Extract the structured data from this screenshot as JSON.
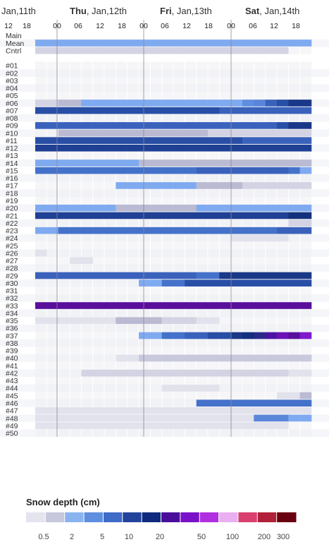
{
  "chart_data": {
    "type": "heatmap",
    "days": [
      {
        "prefix": "",
        "bold": "",
        "label": "Jan,11th",
        "faded": true
      },
      {
        "prefix": "",
        "bold": "Thu",
        "label": ", Jan,12th",
        "faded": false
      },
      {
        "prefix": "",
        "bold": "Fri",
        "label": ", Jan,13th",
        "faded": false
      },
      {
        "prefix": "",
        "bold": "Sat",
        "label": ", Jan,14th",
        "faded": false
      }
    ],
    "hour_ticks": [
      "12",
      "18",
      "00",
      "06",
      "12",
      "18",
      "00",
      "06",
      "12",
      "18",
      "00",
      "06",
      "12",
      "18"
    ],
    "rows": [
      "Main",
      "Mean",
      "Cntrl",
      "",
      "#01",
      "#02",
      "#03",
      "#04",
      "#05",
      "#06",
      "#07",
      "#08",
      "#09",
      "#10",
      "#11",
      "#12",
      "#13",
      "#14",
      "#15",
      "#16",
      "#17",
      "#18",
      "#19",
      "#20",
      "#21",
      "#22",
      "#23",
      "#24",
      "#25",
      "#26",
      "#27",
      "#28",
      "#29",
      "#30",
      "#31",
      "#32",
      "#33",
      "#34",
      "#35",
      "#36",
      "#37",
      "#38",
      "#39",
      "#40",
      "#41",
      "#42",
      "#43",
      "#44",
      "#45",
      "#46",
      "#47",
      "#48",
      "#49",
      "#50"
    ],
    "num_time_steps": 24,
    "cells": {
      "Mean": [
        1.5,
        1.5,
        1.5,
        1.5,
        1.5,
        1.5,
        1.5,
        1.5,
        1.5,
        1.5,
        1.5,
        1.5,
        1.5,
        1.5,
        1.5,
        1.5,
        1.5,
        1.5,
        1.5,
        1.5,
        1.5,
        1.5,
        1.5,
        1.5
      ],
      "Cntrl": [
        0.3,
        0.3,
        0.3,
        0.3,
        0.3,
        0.3,
        0.3,
        0.3,
        0.3,
        0.3,
        0.3,
        0.3,
        0.3,
        0.3,
        0.3,
        0.3,
        0.3,
        0.3,
        0.3,
        0.3,
        0.3,
        0.3,
        0,
        0
      ],
      "#06": [
        0.3,
        0.3,
        0.5,
        0.5,
        1.5,
        1.5,
        1.5,
        1.5,
        1.5,
        1.5,
        1.5,
        1.5,
        1.5,
        1.5,
        1.5,
        1.5,
        1.5,
        1.5,
        2.5,
        3,
        5,
        6,
        7,
        7
      ],
      "#07": [
        6,
        6,
        6,
        6,
        6,
        6,
        6,
        6,
        6,
        6,
        6,
        6,
        6,
        6,
        6,
        6,
        5,
        5,
        5,
        5,
        5,
        5,
        5,
        5
      ],
      "#09": [
        5,
        5,
        5,
        5,
        5,
        5,
        5,
        5,
        5,
        5,
        5,
        5,
        5,
        5,
        5,
        5,
        5,
        5,
        5,
        5,
        5,
        6,
        7,
        7
      ],
      "#10": [
        0,
        0,
        0.5,
        0.5,
        0.5,
        0.5,
        0.5,
        0.5,
        0.5,
        0.5,
        0.5,
        0.5,
        0.5,
        0.5,
        0.5,
        0.3,
        0.3,
        0.3,
        0.3,
        0.3,
        0.3,
        0.3,
        0.3,
        0.3
      ],
      "#11": [
        6,
        6,
        6,
        6,
        6,
        6,
        6,
        6,
        6,
        6,
        6,
        6,
        6,
        6,
        6,
        6,
        6,
        6,
        5,
        5,
        5,
        5,
        5,
        5
      ],
      "#12": [
        6.5,
        6.5,
        6.5,
        6.5,
        6.5,
        6.5,
        6.5,
        6.5,
        6.5,
        6.5,
        6.5,
        6.5,
        6.5,
        6.5,
        6.5,
        6.5,
        6.5,
        6.5,
        6.5,
        6.5,
        6.5,
        6.5,
        6.5,
        6.5
      ],
      "#14": [
        1.5,
        1.5,
        1.5,
        1.5,
        1.5,
        1.5,
        1.5,
        1.5,
        1.5,
        0.5,
        0.5,
        0.5,
        0.5,
        0.5,
        0.5,
        0.5,
        0.5,
        0.5,
        0.5,
        0.5,
        0.5,
        0.5,
        0.5,
        0.5
      ],
      "#15": [
        4,
        4,
        4,
        4,
        4,
        4,
        4,
        4,
        4,
        4,
        4,
        4,
        4,
        4,
        5,
        5,
        5,
        5,
        5,
        5,
        5,
        5,
        4,
        1.5
      ],
      "#17": [
        0,
        0,
        0,
        0,
        0,
        0,
        0,
        1.5,
        1.5,
        1.5,
        1.5,
        1.5,
        1.5,
        1.5,
        0.5,
        0.5,
        0.5,
        0.5,
        0.3,
        0.3,
        0.3,
        0.3,
        0.3,
        0.3
      ],
      "#20": [
        1.5,
        1.5,
        1.5,
        1.5,
        1.5,
        1.5,
        1.5,
        0.5,
        0.5,
        0.5,
        0.5,
        0.5,
        0.5,
        0.5,
        1.5,
        1.5,
        1.5,
        1.5,
        1.5,
        1.5,
        1.5,
        1.5,
        1.5,
        1.5
      ],
      "#21": [
        6.5,
        6.5,
        6.5,
        6.5,
        6.5,
        6.5,
        6.5,
        6.5,
        6.5,
        6.5,
        6.5,
        6.5,
        6.5,
        6.5,
        6.5,
        6.5,
        6.5,
        6.5,
        6.5,
        6.5,
        6.5,
        6.5,
        8,
        8
      ],
      "#22": [
        0,
        0,
        0,
        0,
        0,
        0,
        0,
        0,
        0,
        0,
        0,
        0,
        0,
        0,
        0,
        0,
        0,
        0,
        0,
        0,
        0,
        0,
        0.3,
        0.3
      ],
      "#23": [
        1.5,
        1.5,
        4,
        4,
        4,
        4,
        4,
        4,
        4,
        4,
        4,
        4,
        4,
        4,
        4,
        4,
        4,
        4,
        4,
        4,
        4,
        5,
        5,
        5
      ],
      "#24": [
        0,
        0,
        0,
        0,
        0,
        0,
        0,
        0,
        0,
        0,
        0,
        0,
        0,
        0,
        0,
        0,
        0,
        0.2,
        0.2,
        0.2,
        0.2,
        0.2,
        0,
        0
      ],
      "#26": [
        0.2,
        0,
        0,
        0,
        0,
        0,
        0,
        0,
        0,
        0,
        0,
        0,
        0,
        0,
        0,
        0,
        0,
        0,
        0,
        0,
        0,
        0,
        0,
        0
      ],
      "#27": [
        0,
        0,
        0,
        0.2,
        0.2,
        0,
        0,
        0,
        0,
        0,
        0,
        0,
        0,
        0,
        0,
        0,
        0,
        0,
        0,
        0,
        0,
        0,
        0,
        0
      ],
      "#29": [
        5,
        5,
        5,
        5,
        5,
        5,
        5,
        5,
        5,
        5,
        5,
        5,
        5,
        5,
        4,
        4,
        7,
        7,
        7,
        7,
        7,
        7,
        7,
        7
      ],
      "#30": [
        0,
        0,
        0,
        0,
        0,
        0,
        0,
        0,
        0,
        1.5,
        1.5,
        4,
        4,
        6,
        6,
        6,
        6,
        6,
        6,
        6,
        6,
        6,
        6,
        6
      ],
      "#33": [
        20,
        20,
        20,
        20,
        20,
        20,
        20,
        20,
        20,
        20,
        20,
        20,
        20,
        20,
        20,
        20,
        20,
        20,
        20,
        20,
        20,
        20,
        20,
        20
      ],
      "#35": [
        0.2,
        0.2,
        0.2,
        0.2,
        0.2,
        0.2,
        0.2,
        0.5,
        0.5,
        0.5,
        0.5,
        0.3,
        0.3,
        0.3,
        0.2,
        0.2,
        0,
        0,
        0,
        0,
        0,
        0,
        0,
        0
      ],
      "#37": [
        0,
        0,
        0,
        0,
        0,
        0,
        0,
        0,
        0,
        1.5,
        1.5,
        4,
        4,
        5,
        5,
        6,
        6,
        7,
        8,
        9,
        12,
        16,
        20,
        25
      ],
      "#40": [
        0,
        0,
        0,
        0,
        0,
        0,
        0,
        0.2,
        0.2,
        0.4,
        0.4,
        0.4,
        0.4,
        0.4,
        0.4,
        0.4,
        0.4,
        0.4,
        0.4,
        0.4,
        0.4,
        0.4,
        0.4,
        0.4
      ],
      "#42": [
        0,
        0,
        0,
        0,
        0.3,
        0.3,
        0.3,
        0.3,
        0.3,
        0.3,
        0.3,
        0.3,
        0.3,
        0.3,
        0.3,
        0.3,
        0.3,
        0.3,
        0.3,
        0.3,
        0.3,
        0.3,
        0.2,
        0.2
      ],
      "#44": [
        0,
        0,
        0,
        0,
        0,
        0,
        0,
        0,
        0,
        0,
        0,
        0.2,
        0.2,
        0.2,
        0.2,
        0.2,
        0,
        0,
        0,
        0,
        0,
        0,
        0,
        0
      ],
      "#45": [
        0,
        0,
        0,
        0,
        0,
        0,
        0,
        0,
        0,
        0,
        0,
        0,
        0,
        0,
        0,
        0,
        0,
        0,
        0,
        0,
        0,
        0.2,
        0.2,
        0.5
      ],
      "#46": [
        0,
        0,
        0,
        0,
        0,
        0,
        0,
        0,
        0,
        0,
        0,
        0,
        0,
        0,
        4,
        4,
        4,
        4,
        4,
        4,
        4,
        4,
        4,
        4
      ],
      "#47": [
        0.2,
        0.2,
        0.2,
        0.2,
        0.2,
        0.2,
        0.2,
        0.2,
        0.2,
        0.2,
        0.2,
        0.2,
        0.2,
        0.2,
        0.2,
        0.2,
        0.2,
        0.2,
        0.2,
        0.2,
        0.2,
        0.2,
        0.2,
        0.2
      ],
      "#48": [
        0.2,
        0.2,
        0.2,
        0.2,
        0.2,
        0.2,
        0.2,
        0.2,
        0.2,
        0.2,
        0.2,
        0.2,
        0.2,
        0.2,
        0.2,
        0.2,
        0.2,
        0.2,
        0.2,
        3,
        3,
        3,
        1.5,
        1.5
      ],
      "#49": [
        0.2,
        0.2,
        0.2,
        0.2,
        0.2,
        0.2,
        0.2,
        0.2,
        0.2,
        0.2,
        0.2,
        0.2,
        0.2,
        0.2,
        0.2,
        0.2,
        0.2,
        0.2,
        0.2,
        0.2,
        0.2,
        0.2,
        0,
        0
      ]
    },
    "legend": {
      "title": "Snow depth (cm)",
      "ticks": [
        "0.5",
        "2",
        "5",
        "10",
        "20",
        "50",
        "100",
        "200",
        "300"
      ],
      "tick_values": [
        0.5,
        2,
        5,
        10,
        20,
        50,
        100,
        200,
        300
      ],
      "colors": [
        "#e4e4ee",
        "#c8c8dc",
        "#8ab4f0",
        "#5e8fe0",
        "#3f6cc8",
        "#23449c",
        "#102a80",
        "#4a0f9a",
        "#7a10c8",
        "#b030e0",
        "#e8b0f0",
        "#d94070",
        "#b02038",
        "#6a0010"
      ],
      "scale": "log"
    }
  }
}
